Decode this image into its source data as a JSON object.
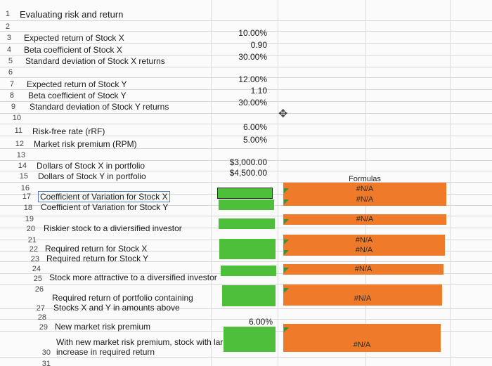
{
  "rows": [
    {
      "num": "1",
      "label": "Evaluating risk and return",
      "value": ""
    },
    {
      "num": "2",
      "label": "",
      "value": ""
    },
    {
      "num": "3",
      "label": "Expected return of Stock X",
      "value": "10.00%"
    },
    {
      "num": "4",
      "label": "Beta coefficient of Stock X",
      "value": "0.90"
    },
    {
      "num": "5",
      "label": "Standard deviation of Stock X returns",
      "value": "30.00%"
    },
    {
      "num": "6",
      "label": "",
      "value": ""
    },
    {
      "num": "7",
      "label": "Expected return of Stock Y",
      "value": "12.00%"
    },
    {
      "num": "8",
      "label": "Beta coefficient of Stock Y",
      "value": "1.10"
    },
    {
      "num": "9",
      "label": "Standard deviation of Stock Y returns",
      "value": "30.00%"
    },
    {
      "num": "10",
      "label": "",
      "value": ""
    },
    {
      "num": "11",
      "label": "Risk-free rate (rRF)",
      "value": "6.00%"
    },
    {
      "num": "12",
      "label": "Market risk premium (RPM)",
      "value": "5.00%"
    },
    {
      "num": "13",
      "label": "",
      "value": ""
    },
    {
      "num": "14",
      "label": "Dollars of Stock X in portfolio",
      "value": "$3,000.00"
    },
    {
      "num": "15",
      "label": "Dollars of Stock Y in portfolio",
      "value": "$4,500.00"
    },
    {
      "num": "16",
      "label": "",
      "value": ""
    },
    {
      "num": "17",
      "label": "Coefficient of Variation for Stock X",
      "value": ""
    },
    {
      "num": "18",
      "label": "Coefficient of Variation for Stock Y",
      "value": ""
    },
    {
      "num": "19",
      "label": "",
      "value": ""
    },
    {
      "num": "20",
      "label": "Riskier stock to a diviersified investor",
      "value": ""
    },
    {
      "num": "21",
      "label": "",
      "value": ""
    },
    {
      "num": "22",
      "label": "Required return for Stock X",
      "value": ""
    },
    {
      "num": "23",
      "label": "Required return for Stock Y",
      "value": ""
    },
    {
      "num": "24",
      "label": "",
      "value": ""
    },
    {
      "num": "25",
      "label": "Stock more attractive to a diversified investor",
      "value": ""
    },
    {
      "num": "26",
      "label": "",
      "value": ""
    },
    {
      "num": "27",
      "label": "Required return of portfolio containing",
      "label2": "Stocks X and Y in amounts above",
      "value": ""
    },
    {
      "num": "28",
      "label": "",
      "value": ""
    },
    {
      "num": "29",
      "label": "New market risk premium",
      "value": "6.00%"
    },
    {
      "num": "30",
      "label": "With new market risk premium, stock with larger",
      "label2": "increase in required return",
      "value": ""
    },
    {
      "num": "31",
      "label": "",
      "value": ""
    }
  ],
  "formulas": {
    "header": "Formulas",
    "cv_x": "#N/A",
    "cv_y": "#N/A",
    "riskier": "#N/A",
    "req_x": "#N/A",
    "req_y": "#N/A",
    "attractive": "#N/A",
    "portfolio": "#N/A",
    "larger_increase": "#N/A"
  },
  "colors": {
    "input_cell": "#4ebf3b",
    "formula_cell": "#ee7a2a"
  }
}
